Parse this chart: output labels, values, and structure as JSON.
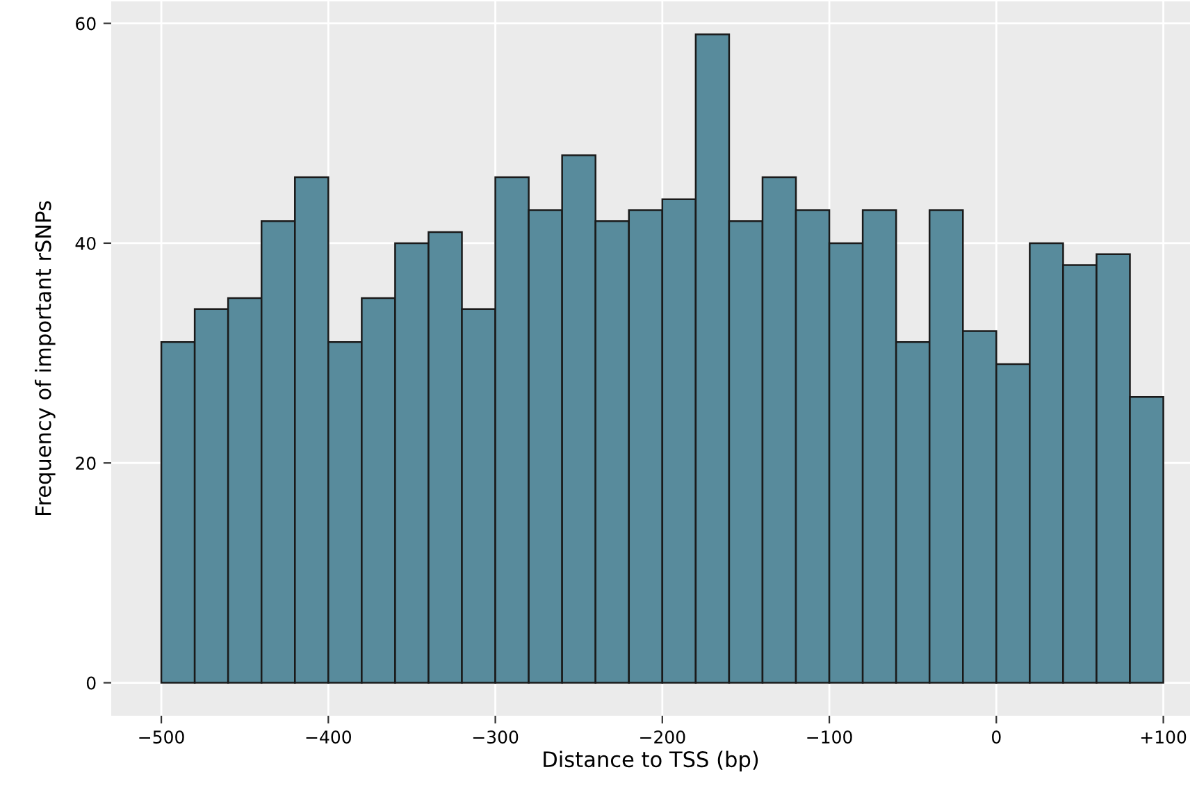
{
  "chart_data": {
    "type": "histogram",
    "xlabel": "Distance to TSS (bp)",
    "ylabel": "Frequency of important rSNPs",
    "bins": [
      -500,
      -480,
      -460,
      -440,
      -420,
      -400,
      -380,
      -360,
      -340,
      -320,
      -300,
      -280,
      -260,
      -240,
      -220,
      -200,
      -180,
      -160,
      -140,
      -120,
      -100,
      -80,
      -60,
      -40,
      -20,
      0,
      20,
      40,
      60,
      80,
      100
    ],
    "values": [
      31,
      34,
      35,
      42,
      46,
      31,
      35,
      40,
      41,
      34,
      46,
      43,
      48,
      42,
      43,
      44,
      59,
      42,
      46,
      43,
      40,
      43,
      31,
      43,
      32,
      29,
      40,
      38,
      39,
      26
    ],
    "color": "#588b9c",
    "xlim": [
      -530,
      116
    ],
    "ylim": [
      -3,
      62
    ],
    "xticks": [
      {
        "value": -500,
        "label": "−500"
      },
      {
        "value": -400,
        "label": "−400"
      },
      {
        "value": -300,
        "label": "−300"
      },
      {
        "value": -200,
        "label": "−200"
      },
      {
        "value": -100,
        "label": "−100"
      },
      0,
      {
        "value": 100,
        "label": "+100"
      }
    ],
    "yticks": [
      0,
      20,
      40,
      60
    ],
    "grid": true
  }
}
